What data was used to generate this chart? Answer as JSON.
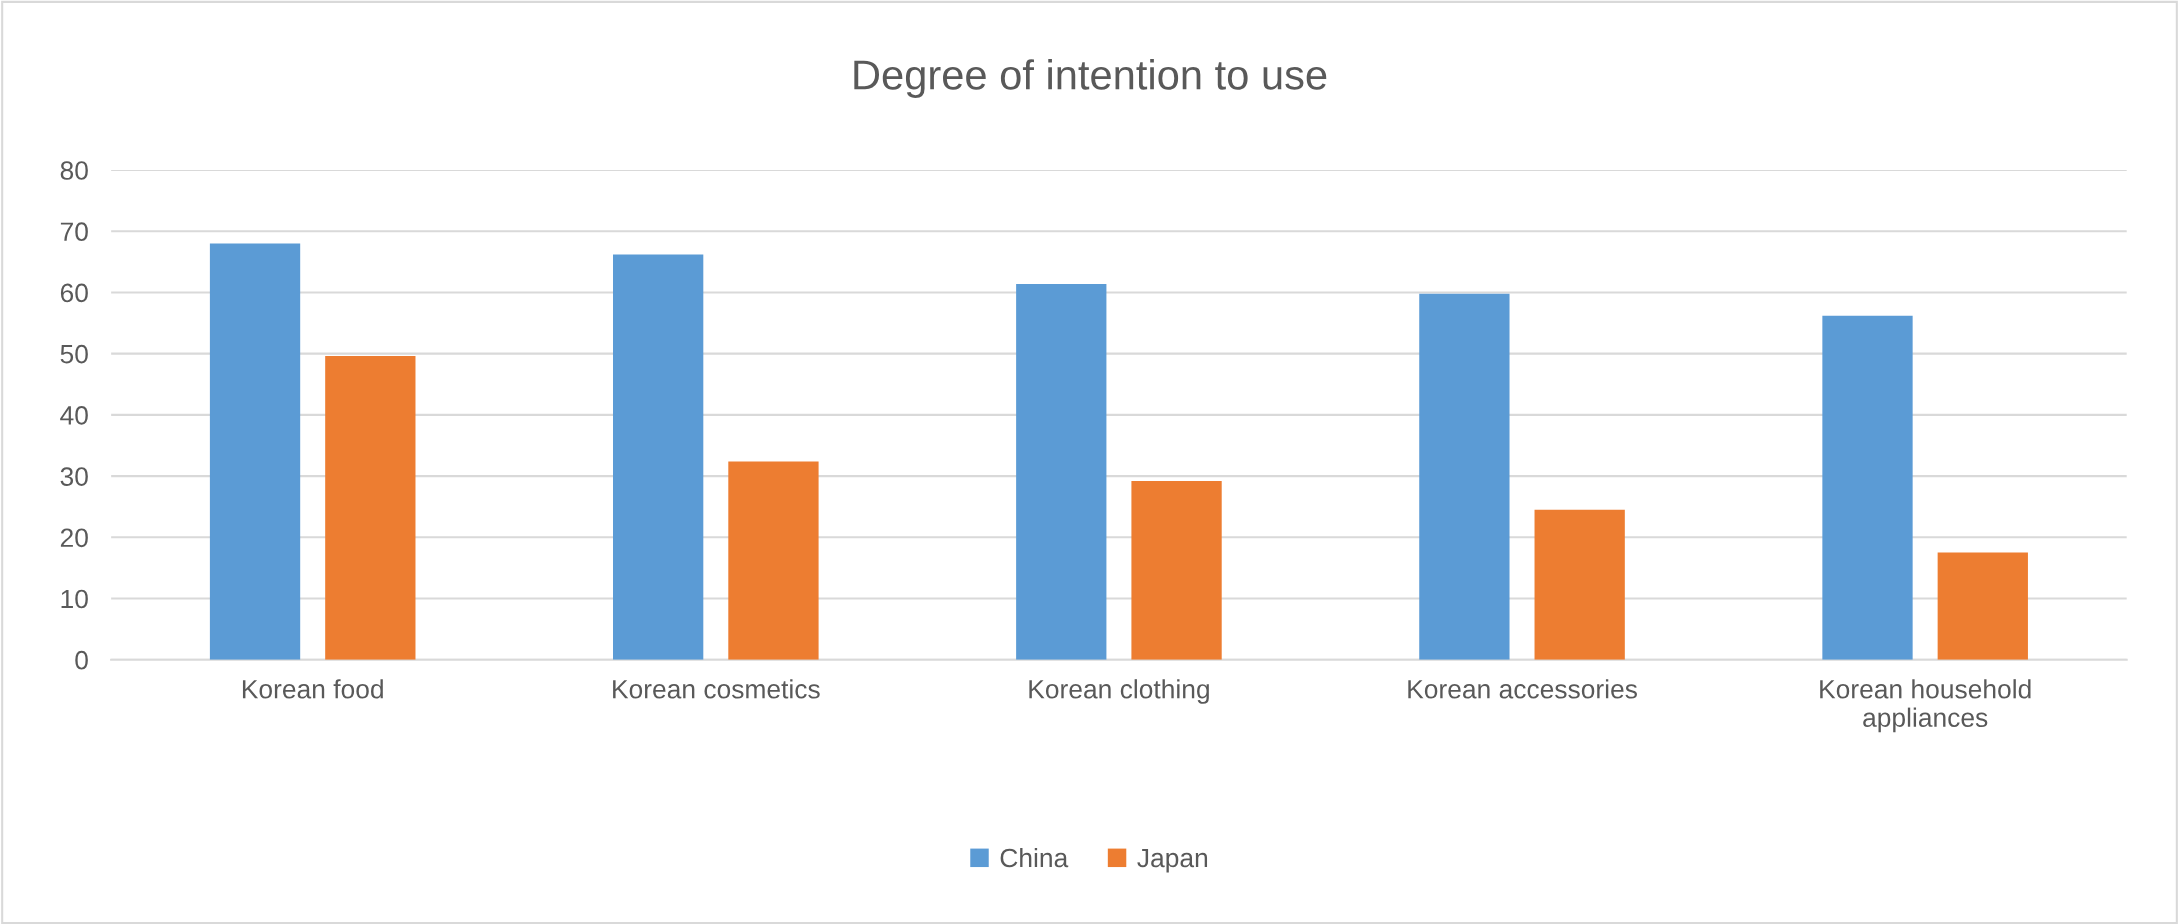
{
  "chart_data": {
    "type": "bar",
    "title": "Degree of intention to use",
    "categories": [
      "Korean food",
      "Korean cosmetics",
      "Korean clothing",
      "Korean accessories",
      "Korean household\nappliances"
    ],
    "series": [
      {
        "name": "China",
        "color": "#5b9bd5",
        "values": [
          68.0,
          66.2,
          61.4,
          59.8,
          56.2
        ]
      },
      {
        "name": "Japan",
        "color": "#ed7d31",
        "values": [
          49.6,
          32.4,
          29.2,
          24.5,
          17.5
        ]
      }
    ],
    "ylim": [
      0,
      80
    ],
    "yticks": [
      0,
      10,
      20,
      30,
      40,
      50,
      60,
      70,
      80
    ],
    "grid": "y",
    "legend": "bottom"
  }
}
